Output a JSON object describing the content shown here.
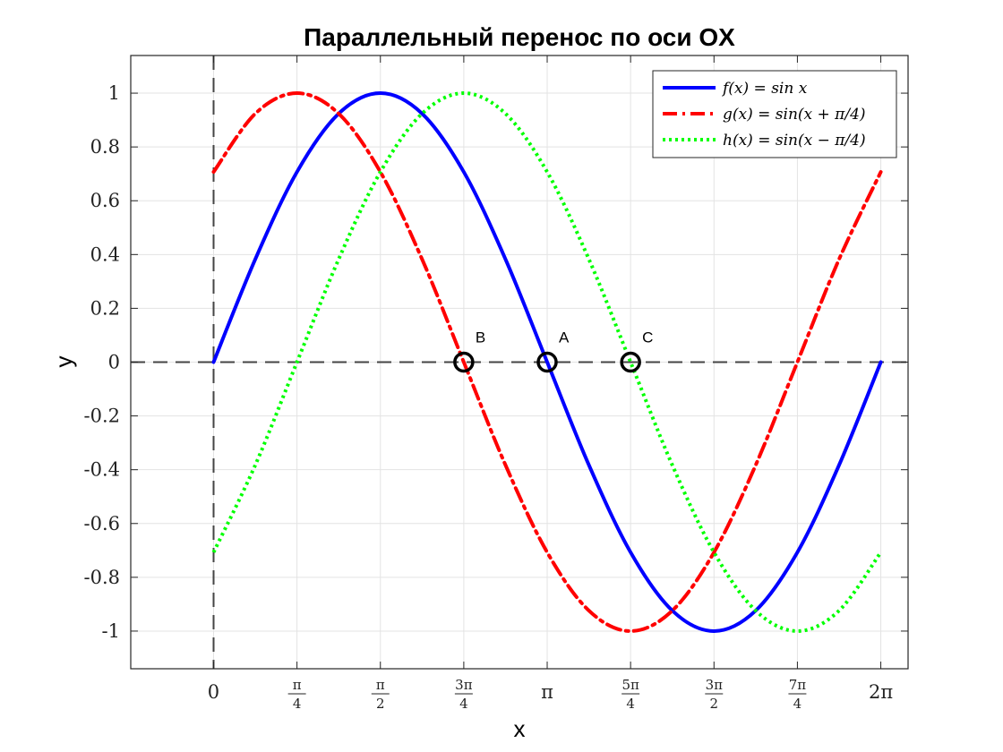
{
  "chart_data": {
    "type": "line",
    "title": "Параллельный перенос по оси OX",
    "xlabel": "x",
    "ylabel": "y",
    "xlim": [
      -0.78,
      6.54
    ],
    "ylim": [
      -1.14,
      1.14
    ],
    "grid": true,
    "legend_position": "top-right",
    "x_ticks": [
      {
        "value": 0,
        "label": "0",
        "num": "",
        "den": ""
      },
      {
        "value": 0.7854,
        "label": "",
        "num": "π",
        "den": "4"
      },
      {
        "value": 1.5708,
        "label": "",
        "num": "π",
        "den": "2"
      },
      {
        "value": 2.3562,
        "label": "",
        "num": "3π",
        "den": "4"
      },
      {
        "value": 3.1416,
        "label": "π",
        "num": "",
        "den": ""
      },
      {
        "value": 3.927,
        "label": "",
        "num": "5π",
        "den": "4"
      },
      {
        "value": 4.7124,
        "label": "",
        "num": "3π",
        "den": "2"
      },
      {
        "value": 5.4978,
        "label": "",
        "num": "7π",
        "den": "4"
      },
      {
        "value": 6.2832,
        "label": "2π",
        "num": "",
        "den": ""
      }
    ],
    "y_ticks": [
      {
        "value": 1,
        "label": "1"
      },
      {
        "value": 0.8,
        "label": "0.8"
      },
      {
        "value": 0.6,
        "label": "0.6"
      },
      {
        "value": 0.4,
        "label": "0.4"
      },
      {
        "value": 0.2,
        "label": "0.2"
      },
      {
        "value": 0,
        "label": "0"
      },
      {
        "value": -0.2,
        "label": "-0.2"
      },
      {
        "value": -0.4,
        "label": "-0.4"
      },
      {
        "value": -0.6,
        "label": "-0.6"
      },
      {
        "value": -0.8,
        "label": "-0.8"
      },
      {
        "value": -1,
        "label": "-1"
      }
    ],
    "series": [
      {
        "name": "f(x) = sin x",
        "color": "#0000ff",
        "style": "solid",
        "x": [
          0,
          0.3927,
          0.7854,
          1.1781,
          1.5708,
          1.9635,
          2.3562,
          2.7489,
          3.1416,
          3.5343,
          3.927,
          4.3197,
          4.7124,
          5.1051,
          5.4978,
          5.8905,
          6.2832
        ],
        "y": [
          0,
          0.3827,
          0.7071,
          0.9239,
          1,
          0.9239,
          0.7071,
          0.3827,
          0,
          -0.3827,
          -0.7071,
          -0.9239,
          -1,
          -0.9239,
          -0.7071,
          -0.3827,
          0
        ]
      },
      {
        "name": "g(x) = sin(x + π/4)",
        "color": "#ff0000",
        "style": "dashdot",
        "x": [
          0,
          0.3927,
          0.7854,
          1.1781,
          1.5708,
          1.9635,
          2.3562,
          2.7489,
          3.1416,
          3.5343,
          3.927,
          4.3197,
          4.7124,
          5.1051,
          5.4978,
          5.8905,
          6.2832
        ],
        "y": [
          0.7071,
          0.9239,
          1,
          0.9239,
          0.7071,
          0.3827,
          0,
          -0.3827,
          -0.7071,
          -0.9239,
          -1,
          -0.9239,
          -0.7071,
          -0.3827,
          0,
          0.3827,
          0.7071
        ]
      },
      {
        "name": "h(x) = sin(x − π/4)",
        "color": "#00ff00",
        "style": "dotted",
        "x": [
          0,
          0.3927,
          0.7854,
          1.1781,
          1.5708,
          1.9635,
          2.3562,
          2.7489,
          3.1416,
          3.5343,
          3.927,
          4.3197,
          4.7124,
          5.1051,
          5.4978,
          5.8905,
          6.2832
        ],
        "y": [
          -0.7071,
          -0.3827,
          0,
          0.3827,
          0.7071,
          0.9239,
          1,
          0.9239,
          0.7071,
          0.3827,
          0,
          -0.3827,
          -0.7071,
          -0.9239,
          -1,
          -0.9239,
          -0.7071
        ]
      }
    ],
    "points": [
      {
        "label": "B",
        "x": 2.3562,
        "y": 0
      },
      {
        "label": "A",
        "x": 3.1416,
        "y": 0
      },
      {
        "label": "C",
        "x": 3.927,
        "y": 0
      }
    ],
    "reference_lines": [
      {
        "orientation": "horizontal",
        "value": 0,
        "color": "#444444"
      },
      {
        "orientation": "vertical",
        "value": 0,
        "color": "#444444"
      }
    ]
  }
}
